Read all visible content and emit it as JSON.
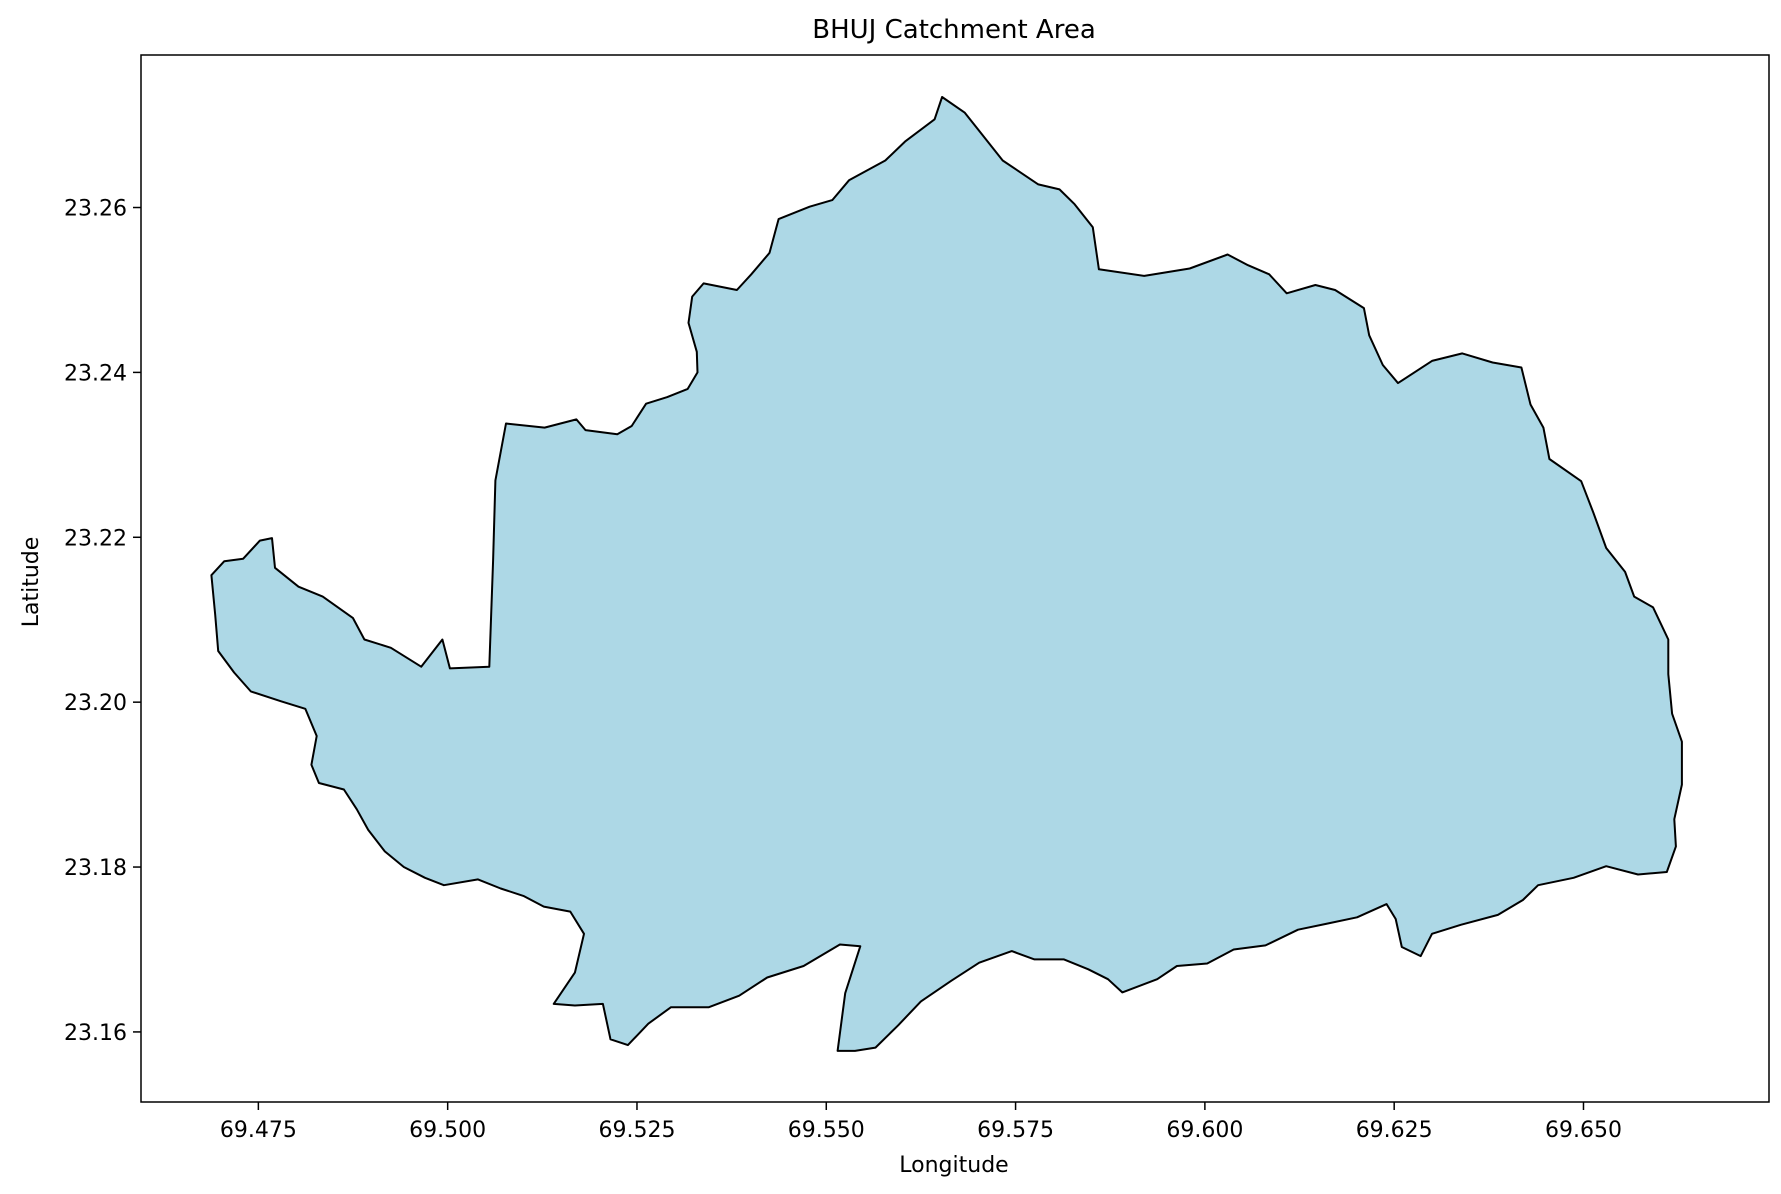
{
  "chart_data": {
    "type": "map",
    "title": "BHUJ Catchment Area",
    "xlabel": "Longitude",
    "ylabel": "Latitude",
    "xlim": [
      69.4595,
      69.6745
    ],
    "ylim": [
      23.1515,
      23.2785
    ],
    "x_ticks": [
      69.475,
      69.5,
      69.525,
      69.55,
      69.575,
      69.6,
      69.625,
      69.65
    ],
    "x_tick_labels": [
      "69.475",
      "69.500",
      "69.525",
      "69.550",
      "69.575",
      "69.600",
      "69.625",
      "69.650"
    ],
    "y_ticks": [
      23.16,
      23.18,
      23.2,
      23.22,
      23.24,
      23.26
    ],
    "y_tick_labels": [
      "23.16",
      "23.18",
      "23.20",
      "23.22",
      "23.24",
      "23.26"
    ],
    "grid": false,
    "legend": "none",
    "fill_color": "#add8e6",
    "edge_color": "#000000",
    "series": [
      {
        "polygon": [
          [
            69.4688,
            23.2154
          ],
          [
            69.4705,
            23.2171
          ],
          [
            69.473,
            23.2174
          ],
          [
            69.4752,
            23.2196
          ],
          [
            69.4768,
            23.2199
          ],
          [
            69.4772,
            23.2163
          ],
          [
            69.4803,
            23.214
          ],
          [
            69.4835,
            23.2128
          ],
          [
            69.4875,
            23.2102
          ],
          [
            69.489,
            23.2076
          ],
          [
            69.4925,
            23.2066
          ],
          [
            69.4965,
            23.2043
          ],
          [
            69.4993,
            23.2076
          ],
          [
            69.5003,
            23.2041
          ],
          [
            69.5055,
            23.2043
          ],
          [
            69.506,
            23.2172
          ],
          [
            69.5063,
            23.2269
          ],
          [
            69.5077,
            23.2338
          ],
          [
            69.5128,
            23.2333
          ],
          [
            69.517,
            23.2343
          ],
          [
            69.5182,
            23.233
          ],
          [
            69.5224,
            23.2325
          ],
          [
            69.5243,
            23.2335
          ],
          [
            69.5262,
            23.2362
          ],
          [
            69.529,
            23.237
          ],
          [
            69.5317,
            23.238
          ],
          [
            69.533,
            23.24
          ],
          [
            69.5329,
            23.2425
          ],
          [
            69.5318,
            23.246
          ],
          [
            69.5323,
            23.2492
          ],
          [
            69.5338,
            23.2508
          ],
          [
            69.5382,
            23.25
          ],
          [
            69.5401,
            23.2519
          ],
          [
            69.5425,
            23.2545
          ],
          [
            69.5437,
            23.2586
          ],
          [
            69.5478,
            23.2601
          ],
          [
            69.5508,
            23.2609
          ],
          [
            69.553,
            23.2633
          ],
          [
            69.5578,
            23.2657
          ],
          [
            69.5604,
            23.268
          ],
          [
            69.5643,
            23.2707
          ],
          [
            69.5653,
            23.2734
          ],
          [
            69.5683,
            23.2715
          ],
          [
            69.5733,
            23.2657
          ],
          [
            69.578,
            23.2628
          ],
          [
            69.5808,
            23.2622
          ],
          [
            69.5828,
            23.2604
          ],
          [
            69.5852,
            23.2576
          ],
          [
            69.586,
            23.2525
          ],
          [
            69.592,
            23.2517
          ],
          [
            69.598,
            23.2526
          ],
          [
            69.603,
            23.2543
          ],
          [
            69.6057,
            23.253
          ],
          [
            69.6085,
            23.2519
          ],
          [
            69.6108,
            23.2496
          ],
          [
            69.6146,
            23.2506
          ],
          [
            69.6172,
            23.25
          ],
          [
            69.621,
            23.2478
          ],
          [
            69.6217,
            23.2445
          ],
          [
            69.6235,
            23.2409
          ],
          [
            69.6255,
            23.2387
          ],
          [
            69.63,
            23.2414
          ],
          [
            69.634,
            23.2423
          ],
          [
            69.638,
            23.2412
          ],
          [
            69.6418,
            23.2406
          ],
          [
            69.643,
            23.2361
          ],
          [
            69.6447,
            23.2333
          ],
          [
            69.6455,
            23.2295
          ],
          [
            69.6497,
            23.2268
          ],
          [
            69.6513,
            23.223
          ],
          [
            69.653,
            23.2187
          ],
          [
            69.6555,
            23.2158
          ],
          [
            69.6567,
            23.2128
          ],
          [
            69.6592,
            23.2115
          ],
          [
            69.6612,
            23.2076
          ],
          [
            69.6612,
            23.2034
          ],
          [
            69.6617,
            23.1986
          ],
          [
            69.663,
            23.1952
          ],
          [
            69.663,
            23.19
          ],
          [
            69.662,
            23.1858
          ],
          [
            69.6622,
            23.1825
          ],
          [
            69.661,
            23.1794
          ],
          [
            69.6572,
            23.1791
          ],
          [
            69.653,
            23.1801
          ],
          [
            69.6487,
            23.1787
          ],
          [
            69.644,
            23.1778
          ],
          [
            69.642,
            23.176
          ],
          [
            69.6387,
            23.1742
          ],
          [
            69.6338,
            23.173
          ],
          [
            69.63,
            23.1719
          ],
          [
            69.6285,
            23.1692
          ],
          [
            69.626,
            23.1703
          ],
          [
            69.6252,
            23.1737
          ],
          [
            69.624,
            23.1755
          ],
          [
            69.6201,
            23.1739
          ],
          [
            69.616,
            23.1731
          ],
          [
            69.6123,
            23.1724
          ],
          [
            69.608,
            23.1705
          ],
          [
            69.6038,
            23.17
          ],
          [
            69.6003,
            23.1683
          ],
          [
            69.5963,
            23.168
          ],
          [
            69.5937,
            23.1664
          ],
          [
            69.5891,
            23.1648
          ],
          [
            69.5872,
            23.1664
          ],
          [
            69.5846,
            23.1676
          ],
          [
            69.5814,
            23.1688
          ],
          [
            69.5775,
            23.1688
          ],
          [
            69.5745,
            23.1698
          ],
          [
            69.5702,
            23.1684
          ],
          [
            69.5665,
            23.1662
          ],
          [
            69.5625,
            23.1637
          ],
          [
            69.5595,
            23.1608
          ],
          [
            69.5565,
            23.1581
          ],
          [
            69.5538,
            23.1577
          ],
          [
            69.5515,
            23.1577
          ],
          [
            69.5525,
            23.1647
          ],
          [
            69.5545,
            23.1704
          ],
          [
            69.5518,
            23.1706
          ],
          [
            69.547,
            23.168
          ],
          [
            69.5422,
            23.1666
          ],
          [
            69.5385,
            23.1644
          ],
          [
            69.5345,
            23.163
          ],
          [
            69.5295,
            23.163
          ],
          [
            69.5265,
            23.161
          ],
          [
            69.5238,
            23.1584
          ],
          [
            69.5215,
            23.1591
          ],
          [
            69.5205,
            23.1634
          ],
          [
            69.5168,
            23.1632
          ],
          [
            69.514,
            23.1634
          ],
          [
            69.5168,
            23.1672
          ],
          [
            69.518,
            23.1719
          ],
          [
            69.5162,
            23.1746
          ],
          [
            69.5127,
            23.1752
          ],
          [
            69.51,
            23.1765
          ],
          [
            69.507,
            23.1774
          ],
          [
            69.504,
            23.1785
          ],
          [
            69.4995,
            23.1778
          ],
          [
            69.497,
            23.1787
          ],
          [
            69.4942,
            23.18
          ],
          [
            69.4917,
            23.1819
          ],
          [
            69.4895,
            23.1845
          ],
          [
            69.488,
            23.187
          ],
          [
            69.4863,
            23.1894
          ],
          [
            69.483,
            23.1902
          ],
          [
            69.482,
            23.1924
          ],
          [
            69.4827,
            23.1959
          ],
          [
            69.4812,
            23.1992
          ],
          [
            69.478,
            23.2001
          ],
          [
            69.474,
            23.2013
          ],
          [
            69.4718,
            23.2036
          ],
          [
            69.4697,
            23.2062
          ],
          [
            69.4693,
            23.2106
          ],
          [
            69.4688,
            23.2154
          ]
        ]
      }
    ]
  }
}
